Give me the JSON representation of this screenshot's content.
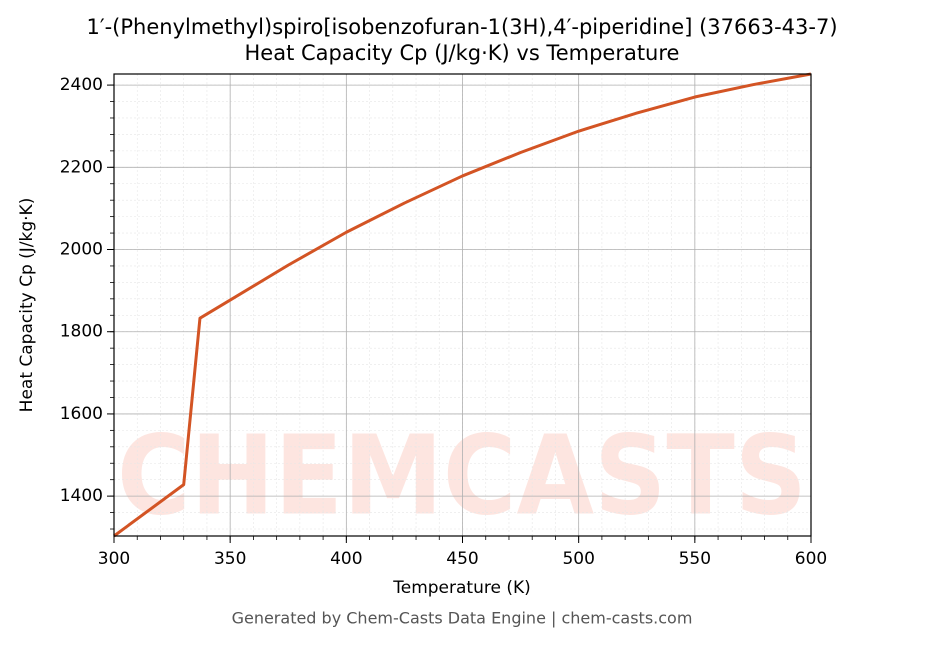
{
  "chart_data": {
    "type": "line",
    "title": "1′-(Phenylmethyl)spiro[isobenzofuran-1(3H),4′-piperidine] (37663-43-7)",
    "subtitle": "Heat Capacity Cp (J/kg·K) vs Temperature",
    "x_label": "Temperature (K)",
    "y_label": "Heat Capacity Cp (J/kg·K)",
    "footer": "Generated by Chem-Casts Data Engine | chem-casts.com",
    "watermark": "CHEMCASTS",
    "x": [
      300,
      330,
      337,
      350,
      375,
      400,
      425,
      450,
      475,
      500,
      525,
      550,
      575,
      600
    ],
    "series": [
      {
        "name": "Cp",
        "color": "#d35424",
        "values": [
          1303,
          1428,
          1833,
          1877,
          1962,
          2042,
          2113,
          2179,
          2236,
          2288,
          2332,
          2371,
          2401,
          2427
        ]
      }
    ],
    "xlim": [
      300,
      600
    ],
    "xticks": [
      300,
      350,
      400,
      450,
      500,
      550,
      600
    ],
    "ylim": [
      1303,
      2427
    ],
    "yticks": [
      1400,
      1600,
      1800,
      2000,
      2200,
      2400
    ],
    "grid": true,
    "minor_grid": true
  }
}
